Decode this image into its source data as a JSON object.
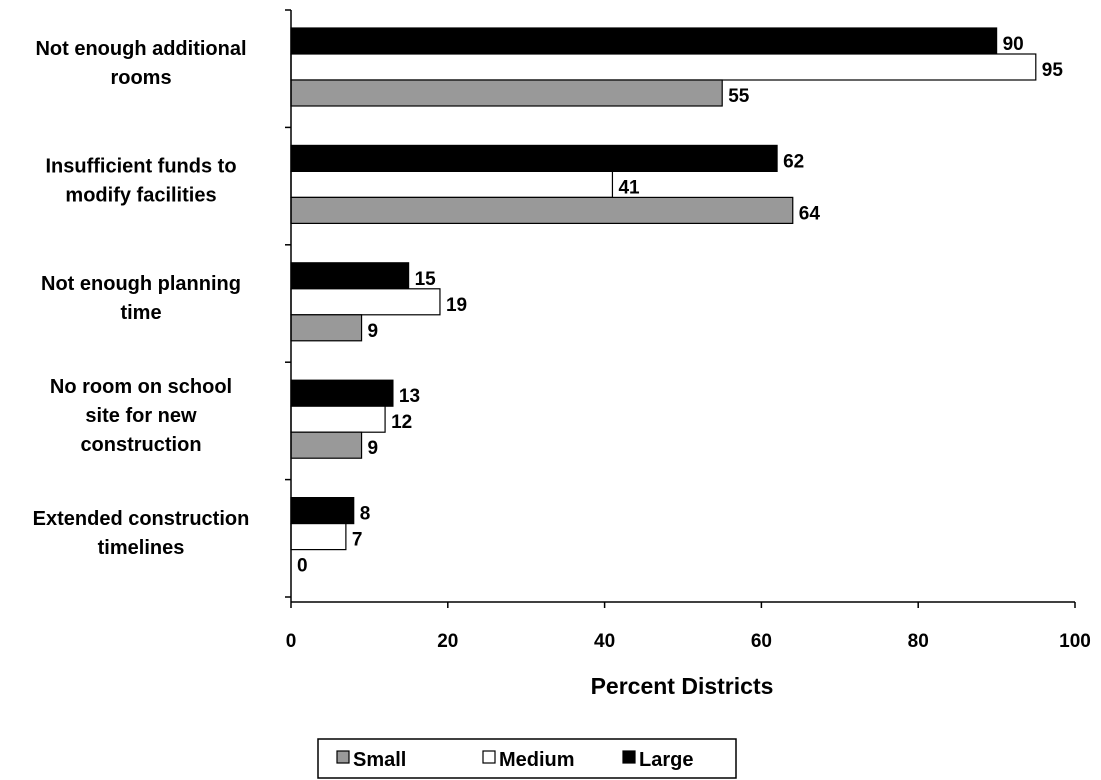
{
  "chart_data": {
    "type": "bar",
    "orientation": "horizontal",
    "categories": [
      [
        "Not enough additional",
        "rooms"
      ],
      [
        "Insufficient funds to",
        "modify facilities"
      ],
      [
        "Not enough planning",
        "time"
      ],
      [
        "No room on school",
        "site for new",
        "construction"
      ],
      [
        "Extended construction",
        "timelines"
      ]
    ],
    "series": [
      {
        "name": "Large",
        "values": [
          90,
          62,
          15,
          13,
          8
        ]
      },
      {
        "name": "Medium",
        "values": [
          95,
          41,
          19,
          12,
          7
        ]
      },
      {
        "name": "Small",
        "values": [
          55,
          64,
          9,
          9,
          0
        ]
      }
    ],
    "colors": {
      "Large": "#000000",
      "Medium": "#ffffff",
      "Small": "#999999"
    },
    "xlabel": "Percent Districts",
    "xlim": [
      0,
      100
    ],
    "xticks": [
      "0",
      "20",
      "40",
      "60",
      "80",
      "100"
    ],
    "grid": false,
    "legend": {
      "position": "bottom",
      "order": [
        "Small",
        "Medium",
        "Large"
      ]
    }
  }
}
